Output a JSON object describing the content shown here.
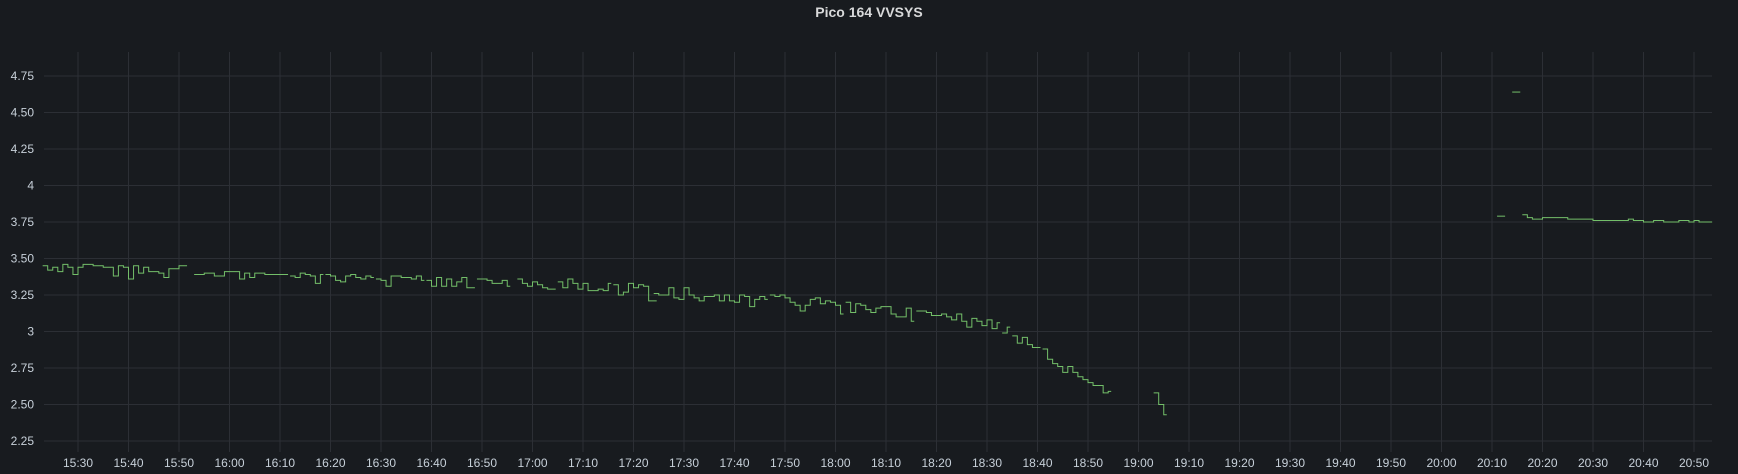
{
  "chart_data": {
    "type": "line",
    "title": "Pico 164 VVSYS",
    "xlabel": "",
    "ylabel": "",
    "ylim": [
      2.2,
      4.85
    ],
    "xlim": [
      "15:23",
      "20:54"
    ],
    "yticks": [
      "2.25",
      "2.50",
      "2.75",
      "3",
      "3.25",
      "3.50",
      "3.75",
      "4",
      "4.25",
      "4.50",
      "4.75"
    ],
    "xticks": [
      "15:30",
      "15:40",
      "15:50",
      "16:00",
      "16:10",
      "16:20",
      "16:30",
      "16:40",
      "16:50",
      "17:00",
      "17:10",
      "17:20",
      "17:30",
      "17:40",
      "17:50",
      "18:00",
      "18:10",
      "18:20",
      "18:30",
      "18:40",
      "18:50",
      "19:00",
      "19:10",
      "19:20",
      "19:30",
      "19:40",
      "19:50",
      "20:00",
      "20:10",
      "20:20",
      "20:30",
      "20:40",
      "20:50"
    ],
    "grid": true,
    "legend": "none",
    "line_color": "#73bf69",
    "interpolation": "step",
    "series": [
      {
        "segments": [
          [
            [
              "15:23",
              3.45
            ],
            [
              "15:24",
              3.42
            ],
            [
              "15:25",
              3.44
            ],
            [
              "15:26",
              3.41
            ],
            [
              "15:27",
              3.46
            ],
            [
              "15:28",
              3.44
            ],
            [
              "15:29",
              3.39
            ],
            [
              "15:30",
              3.44
            ],
            [
              "15:31",
              3.46
            ],
            [
              "15:33",
              3.45
            ],
            [
              "15:35",
              3.44
            ],
            [
              "15:37",
              3.38
            ],
            [
              "15:38",
              3.45
            ],
            [
              "15:39",
              3.44
            ],
            [
              "15:40",
              3.36
            ],
            [
              "15:41",
              3.45
            ],
            [
              "15:42",
              3.4
            ],
            [
              "15:43",
              3.44
            ],
            [
              "15:44",
              3.41
            ],
            [
              "15:46",
              3.4
            ],
            [
              "15:47",
              3.37
            ],
            [
              "15:48",
              3.43
            ],
            [
              "15:50",
              3.45
            ],
            [
              "15:51",
              3.45
            ]
          ],
          [
            [
              "15:53",
              3.39
            ],
            [
              "15:55",
              3.4
            ],
            [
              "15:57",
              3.38
            ],
            [
              "15:59",
              3.41
            ],
            [
              "16:01",
              3.41
            ],
            [
              "16:02",
              3.36
            ],
            [
              "16:03",
              3.4
            ],
            [
              "16:04",
              3.37
            ],
            [
              "16:05",
              3.4
            ],
            [
              "16:07",
              3.39
            ],
            [
              "16:10",
              3.39
            ],
            [
              "16:11",
              3.39
            ]
          ],
          [
            [
              "16:12",
              3.38
            ],
            [
              "16:13",
              3.37
            ],
            [
              "16:14",
              3.4
            ],
            [
              "16:15",
              3.39
            ],
            [
              "16:16",
              3.38
            ],
            [
              "16:17",
              3.33
            ],
            [
              "16:18",
              3.39
            ]
          ],
          [
            [
              "16:19",
              3.39
            ],
            [
              "16:20",
              3.38
            ],
            [
              "16:21",
              3.35
            ],
            [
              "16:22",
              3.34
            ],
            [
              "16:23",
              3.38
            ],
            [
              "16:24",
              3.39
            ],
            [
              "16:25",
              3.37
            ],
            [
              "16:26",
              3.36
            ],
            [
              "16:27",
              3.38
            ],
            [
              "16:28",
              3.37
            ]
          ],
          [
            [
              "16:29",
              3.36
            ],
            [
              "16:30",
              3.35
            ],
            [
              "16:31",
              3.31
            ],
            [
              "16:32",
              3.38
            ],
            [
              "16:34",
              3.37
            ],
            [
              "16:36",
              3.36
            ],
            [
              "16:37",
              3.38
            ],
            [
              "16:38",
              3.35
            ]
          ],
          [
            [
              "16:39",
              3.35
            ],
            [
              "16:40",
              3.31
            ],
            [
              "16:41",
              3.37
            ],
            [
              "16:42",
              3.31
            ],
            [
              "16:43",
              3.36
            ],
            [
              "16:44",
              3.31
            ],
            [
              "16:45",
              3.34
            ],
            [
              "16:46",
              3.37
            ],
            [
              "16:47",
              3.3
            ],
            [
              "16:48",
              3.3
            ]
          ],
          [
            [
              "16:49",
              3.36
            ],
            [
              "16:51",
              3.35
            ],
            [
              "16:52",
              3.33
            ],
            [
              "16:54",
              3.35
            ],
            [
              "16:55",
              3.31
            ]
          ],
          [
            [
              "16:57",
              3.36
            ],
            [
              "16:58",
              3.33
            ],
            [
              "16:59",
              3.31
            ],
            [
              "17:00",
              3.34
            ],
            [
              "17:01",
              3.32
            ],
            [
              "17:02",
              3.3
            ],
            [
              "17:03",
              3.29
            ],
            [
              "17:04",
              3.29
            ]
          ],
          [
            [
              "17:05",
              3.34
            ],
            [
              "17:06",
              3.3
            ],
            [
              "17:07",
              3.36
            ],
            [
              "17:08",
              3.33
            ],
            [
              "17:09",
              3.29
            ],
            [
              "17:10",
              3.33
            ],
            [
              "17:11",
              3.28
            ],
            [
              "17:12",
              3.28
            ],
            [
              "17:13",
              3.29
            ],
            [
              "17:14",
              3.28
            ],
            [
              "17:15",
              3.33
            ]
          ],
          [
            [
              "17:16",
              3.32
            ],
            [
              "17:17",
              3.25
            ],
            [
              "17:18",
              3.27
            ],
            [
              "17:19",
              3.33
            ],
            [
              "17:20",
              3.3
            ],
            [
              "17:21",
              3.32
            ],
            [
              "17:22",
              3.31
            ],
            [
              "17:23",
              3.21
            ],
            [
              "17:24",
              3.21
            ]
          ],
          [
            [
              "17:24",
              3.26
            ],
            [
              "17:25",
              3.25
            ],
            [
              "17:26",
              3.25
            ],
            [
              "17:27",
              3.3
            ],
            [
              "17:28",
              3.23
            ],
            [
              "17:29",
              3.22
            ],
            [
              "17:30",
              3.3
            ],
            [
              "17:31",
              3.25
            ],
            [
              "17:32",
              3.23
            ],
            [
              "17:33",
              3.21
            ],
            [
              "17:34",
              3.24
            ],
            [
              "17:36",
              3.25
            ],
            [
              "17:37",
              3.21
            ],
            [
              "17:38",
              3.25
            ],
            [
              "17:39",
              3.21
            ],
            [
              "17:40",
              3.2
            ],
            [
              "17:41",
              3.25
            ],
            [
              "17:42",
              3.24
            ],
            [
              "17:43",
              3.17
            ],
            [
              "17:44",
              3.22
            ],
            [
              "17:45",
              3.24
            ],
            [
              "17:46",
              3.22
            ]
          ],
          [
            [
              "17:47",
              3.25
            ],
            [
              "17:48",
              3.24
            ],
            [
              "17:49",
              3.25
            ],
            [
              "17:50",
              3.23
            ],
            [
              "17:51",
              3.2
            ],
            [
              "17:52",
              3.18
            ],
            [
              "17:53",
              3.14
            ],
            [
              "17:54",
              3.18
            ],
            [
              "17:55",
              3.22
            ],
            [
              "17:56",
              3.23
            ],
            [
              "17:57",
              3.19
            ],
            [
              "17:58",
              3.21
            ],
            [
              "17:59",
              3.2
            ],
            [
              "18:00",
              3.18
            ],
            [
              "18:01",
              3.12
            ]
          ],
          [
            [
              "18:02",
              3.2
            ],
            [
              "18:03",
              3.13
            ],
            [
              "18:04",
              3.19
            ],
            [
              "18:05",
              3.18
            ],
            [
              "18:06",
              3.15
            ],
            [
              "18:07",
              3.13
            ],
            [
              "18:08",
              3.16
            ],
            [
              "18:09",
              3.17
            ],
            [
              "18:10",
              3.17
            ],
            [
              "18:11",
              3.12
            ],
            [
              "18:12",
              3.1
            ],
            [
              "18:13",
              3.1
            ],
            [
              "18:14",
              3.16
            ],
            [
              "18:15",
              3.07
            ]
          ],
          [
            [
              "18:16",
              3.14
            ],
            [
              "18:18",
              3.13
            ],
            [
              "18:19",
              3.11
            ],
            [
              "18:21",
              3.12
            ],
            [
              "18:22",
              3.1
            ],
            [
              "18:23",
              3.08
            ],
            [
              "18:24",
              3.12
            ],
            [
              "18:25",
              3.07
            ],
            [
              "18:26",
              3.03
            ],
            [
              "18:27",
              3.09
            ],
            [
              "18:28",
              3.07
            ],
            [
              "18:29",
              3.04
            ],
            [
              "18:30",
              3.08
            ],
            [
              "18:31",
              3.02
            ],
            [
              "18:32",
              3.06
            ]
          ],
          [
            [
              "18:33",
              2.99
            ],
            [
              "18:34",
              3.03
            ]
          ],
          [
            [
              "18:35",
              2.97
            ],
            [
              "18:36",
              2.92
            ],
            [
              "18:37",
              2.96
            ],
            [
              "18:38",
              2.91
            ],
            [
              "18:39",
              2.89
            ],
            [
              "18:40",
              2.89
            ]
          ],
          [
            [
              "18:41",
              2.88
            ],
            [
              "18:42",
              2.81
            ],
            [
              "18:43",
              2.78
            ],
            [
              "18:44",
              2.76
            ],
            [
              "18:45",
              2.72
            ],
            [
              "18:46",
              2.76
            ],
            [
              "18:47",
              2.72
            ],
            [
              "18:48",
              2.69
            ],
            [
              "18:49",
              2.67
            ],
            [
              "18:50",
              2.65
            ],
            [
              "18:51",
              2.63
            ],
            [
              "18:52",
              2.63
            ],
            [
              "18:53",
              2.58
            ],
            [
              "18:54",
              2.59
            ]
          ],
          [
            [
              "19:03",
              2.58
            ],
            [
              "19:04",
              2.5
            ],
            [
              "19:05",
              2.43
            ],
            [
              "19:05",
              2.43
            ]
          ],
          [
            [
              "20:11",
              3.79
            ],
            [
              "20:12",
              3.79
            ]
          ],
          [
            [
              "20:14",
              4.64
            ],
            [
              "20:15",
              4.64
            ]
          ],
          [
            [
              "20:16",
              3.8
            ],
            [
              "20:17",
              3.78
            ],
            [
              "20:18",
              3.77
            ],
            [
              "20:20",
              3.78
            ],
            [
              "20:23",
              3.78
            ],
            [
              "20:25",
              3.77
            ],
            [
              "20:27",
              3.77
            ],
            [
              "20:30",
              3.76
            ],
            [
              "20:33",
              3.76
            ],
            [
              "20:35",
              3.76
            ],
            [
              "20:37",
              3.77
            ],
            [
              "20:38",
              3.76
            ],
            [
              "20:40",
              3.75
            ],
            [
              "20:42",
              3.76
            ],
            [
              "20:44",
              3.75
            ],
            [
              "20:47",
              3.76
            ],
            [
              "20:49",
              3.75
            ],
            [
              "20:50",
              3.76
            ],
            [
              "20:51",
              3.75
            ],
            [
              "20:53",
              3.75
            ]
          ]
        ]
      }
    ]
  }
}
